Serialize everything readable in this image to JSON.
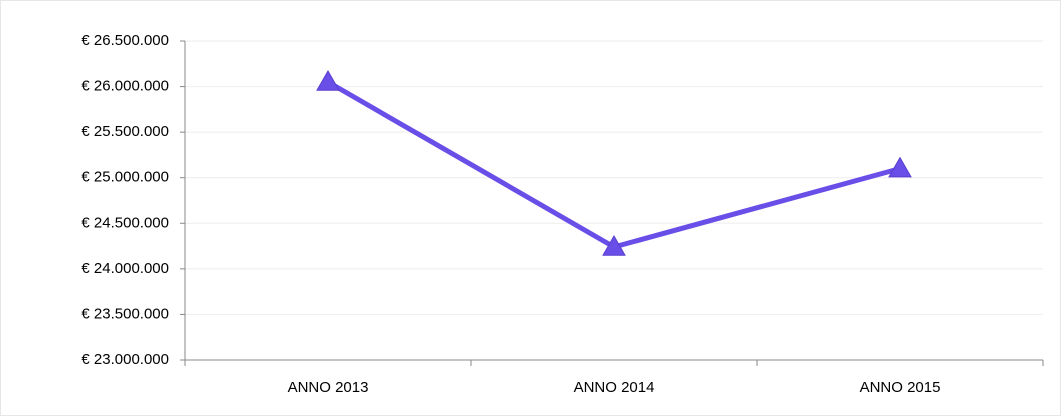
{
  "chart_data": {
    "type": "line",
    "categories": [
      "ANNO 2013",
      "ANNO 2014",
      "ANNO 2015"
    ],
    "series": [
      {
        "color": "#6a4ee8",
        "values": [
          26050000,
          24240000,
          25100000
        ]
      }
    ],
    "ylim": [
      23000000,
      26500000
    ],
    "yticks": [
      {
        "value": 23000000,
        "label": "€ 23.000.000"
      },
      {
        "value": 23500000,
        "label": "€ 23.500.000"
      },
      {
        "value": 24000000,
        "label": "€ 24.000.000"
      },
      {
        "value": 24500000,
        "label": "€ 24.500.000"
      },
      {
        "value": 25000000,
        "label": "€ 25.000.000"
      },
      {
        "value": 25500000,
        "label": "€ 25.500.000"
      },
      {
        "value": 26000000,
        "label": "€ 26.000.000"
      },
      {
        "value": 26500000,
        "label": "€ 26.500.000"
      }
    ],
    "grid": true,
    "marker": "triangle"
  }
}
